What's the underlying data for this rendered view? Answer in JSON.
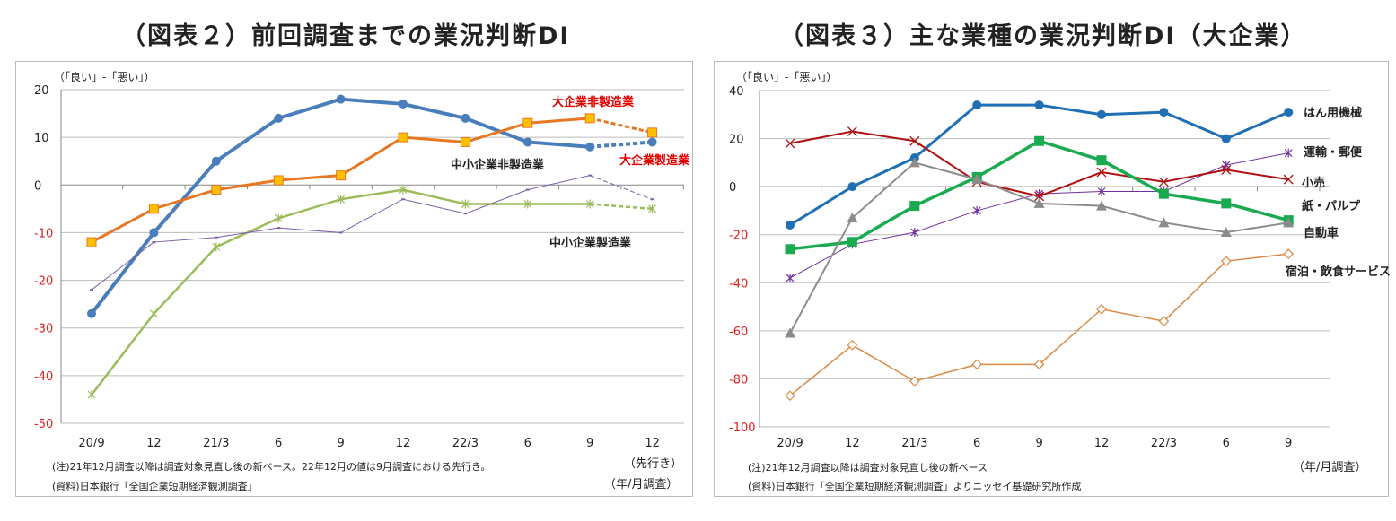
{
  "chart_data": [
    {
      "type": "line",
      "title": "（図表２）前回調査までの業況判断DI",
      "ylabel": "（「良い」-「悪い」）",
      "xlabel": "（年/月調査）",
      "forecast_label": "（先行き）",
      "categories": [
        "20/9",
        "12",
        "21/3",
        "6",
        "9",
        "12",
        "22/3",
        "6",
        "9",
        "12"
      ],
      "ylim": [
        -50,
        20
      ],
      "yticks": [
        20,
        10,
        0,
        -10,
        -20,
        -30,
        -40,
        -50
      ],
      "grid": true,
      "negative_tick_color": "#e02020",
      "forecast_from_index": 8,
      "series": [
        {
          "name": "大企業製造業",
          "color": "#4a7ebb",
          "marker": "circle",
          "label_color": "#e00000",
          "values": [
            -27,
            -10,
            5,
            14,
            18,
            17,
            14,
            9,
            8,
            9
          ]
        },
        {
          "name": "大企業非製造業",
          "color": "#e87722",
          "marker": "square",
          "marker_fill": "#ffc000",
          "label_color": "#e00000",
          "values": [
            -12,
            -5,
            -1,
            1,
            2,
            10,
            9,
            13,
            14,
            11
          ]
        },
        {
          "name": "中小企業製造業",
          "color": "#9bbb59",
          "marker": "star",
          "label_color": "#222222",
          "values": [
            -44,
            -27,
            -13,
            -7,
            -3,
            -1,
            -4,
            -4,
            -4,
            -5
          ]
        },
        {
          "name": "中小企業非製造業",
          "color": "#7b5ea7",
          "marker": "dash",
          "label_color": "#222222",
          "values": [
            -22,
            -12,
            -11,
            -9,
            -10,
            -3,
            -6,
            -1,
            2,
            -3
          ]
        }
      ],
      "notes": [
        "(注)21年12月調査以降は調査対象見直し後の新ベース。22年12月の値は9月調査における先行き。",
        "(資料)日本銀行「全国企業短期経済観測調査」"
      ]
    },
    {
      "type": "line",
      "title": "（図表３）主な業種の業況判断DI（大企業）",
      "ylabel": "（「良い」-「悪い」）",
      "xlabel": "（年/月調査）",
      "categories": [
        "20/9",
        "12",
        "21/3",
        "6",
        "9",
        "12",
        "22/3",
        "6",
        "9"
      ],
      "ylim": [
        -100,
        40
      ],
      "yticks": [
        40,
        20,
        0,
        -20,
        -40,
        -60,
        -80,
        -100
      ],
      "grid": true,
      "negative_tick_color": "#e02020",
      "series": [
        {
          "name": "はん用機械",
          "color": "#1f6fb5",
          "marker": "circle",
          "values": [
            -16,
            0,
            12,
            34,
            34,
            30,
            31,
            20,
            31
          ]
        },
        {
          "name": "運輸・郵便",
          "color": "#7030a0",
          "marker": "star",
          "values": [
            -38,
            -24,
            -19,
            -10,
            -3,
            -2,
            -2,
            9,
            14
          ]
        },
        {
          "name": "小売",
          "color": "#b01010",
          "marker": "x",
          "values": [
            18,
            23,
            19,
            2,
            -4,
            6,
            2,
            7,
            3
          ]
        },
        {
          "name": "紙・パルプ",
          "color": "#1aaa50",
          "marker": "square",
          "values": [
            -26,
            -23,
            -8,
            4,
            19,
            11,
            -3,
            -7,
            -14
          ]
        },
        {
          "name": "自動車",
          "color": "#8c8c8c",
          "marker": "triangle",
          "values": [
            -61,
            -13,
            10,
            3,
            -7,
            -8,
            -15,
            -19,
            -15
          ]
        },
        {
          "name": "宿泊・飲食サービス",
          "color": "#d98a45",
          "marker": "diamond",
          "values": [
            -87,
            -66,
            -81,
            -74,
            -74,
            -51,
            -56,
            -31,
            -28
          ]
        }
      ],
      "notes": [
        "(注)21年12月調査以降は調査対象見直し後の新ベース",
        "(資料)日本銀行「全国企業短期経済観測調査」よりニッセイ基礎研究所作成"
      ]
    }
  ]
}
